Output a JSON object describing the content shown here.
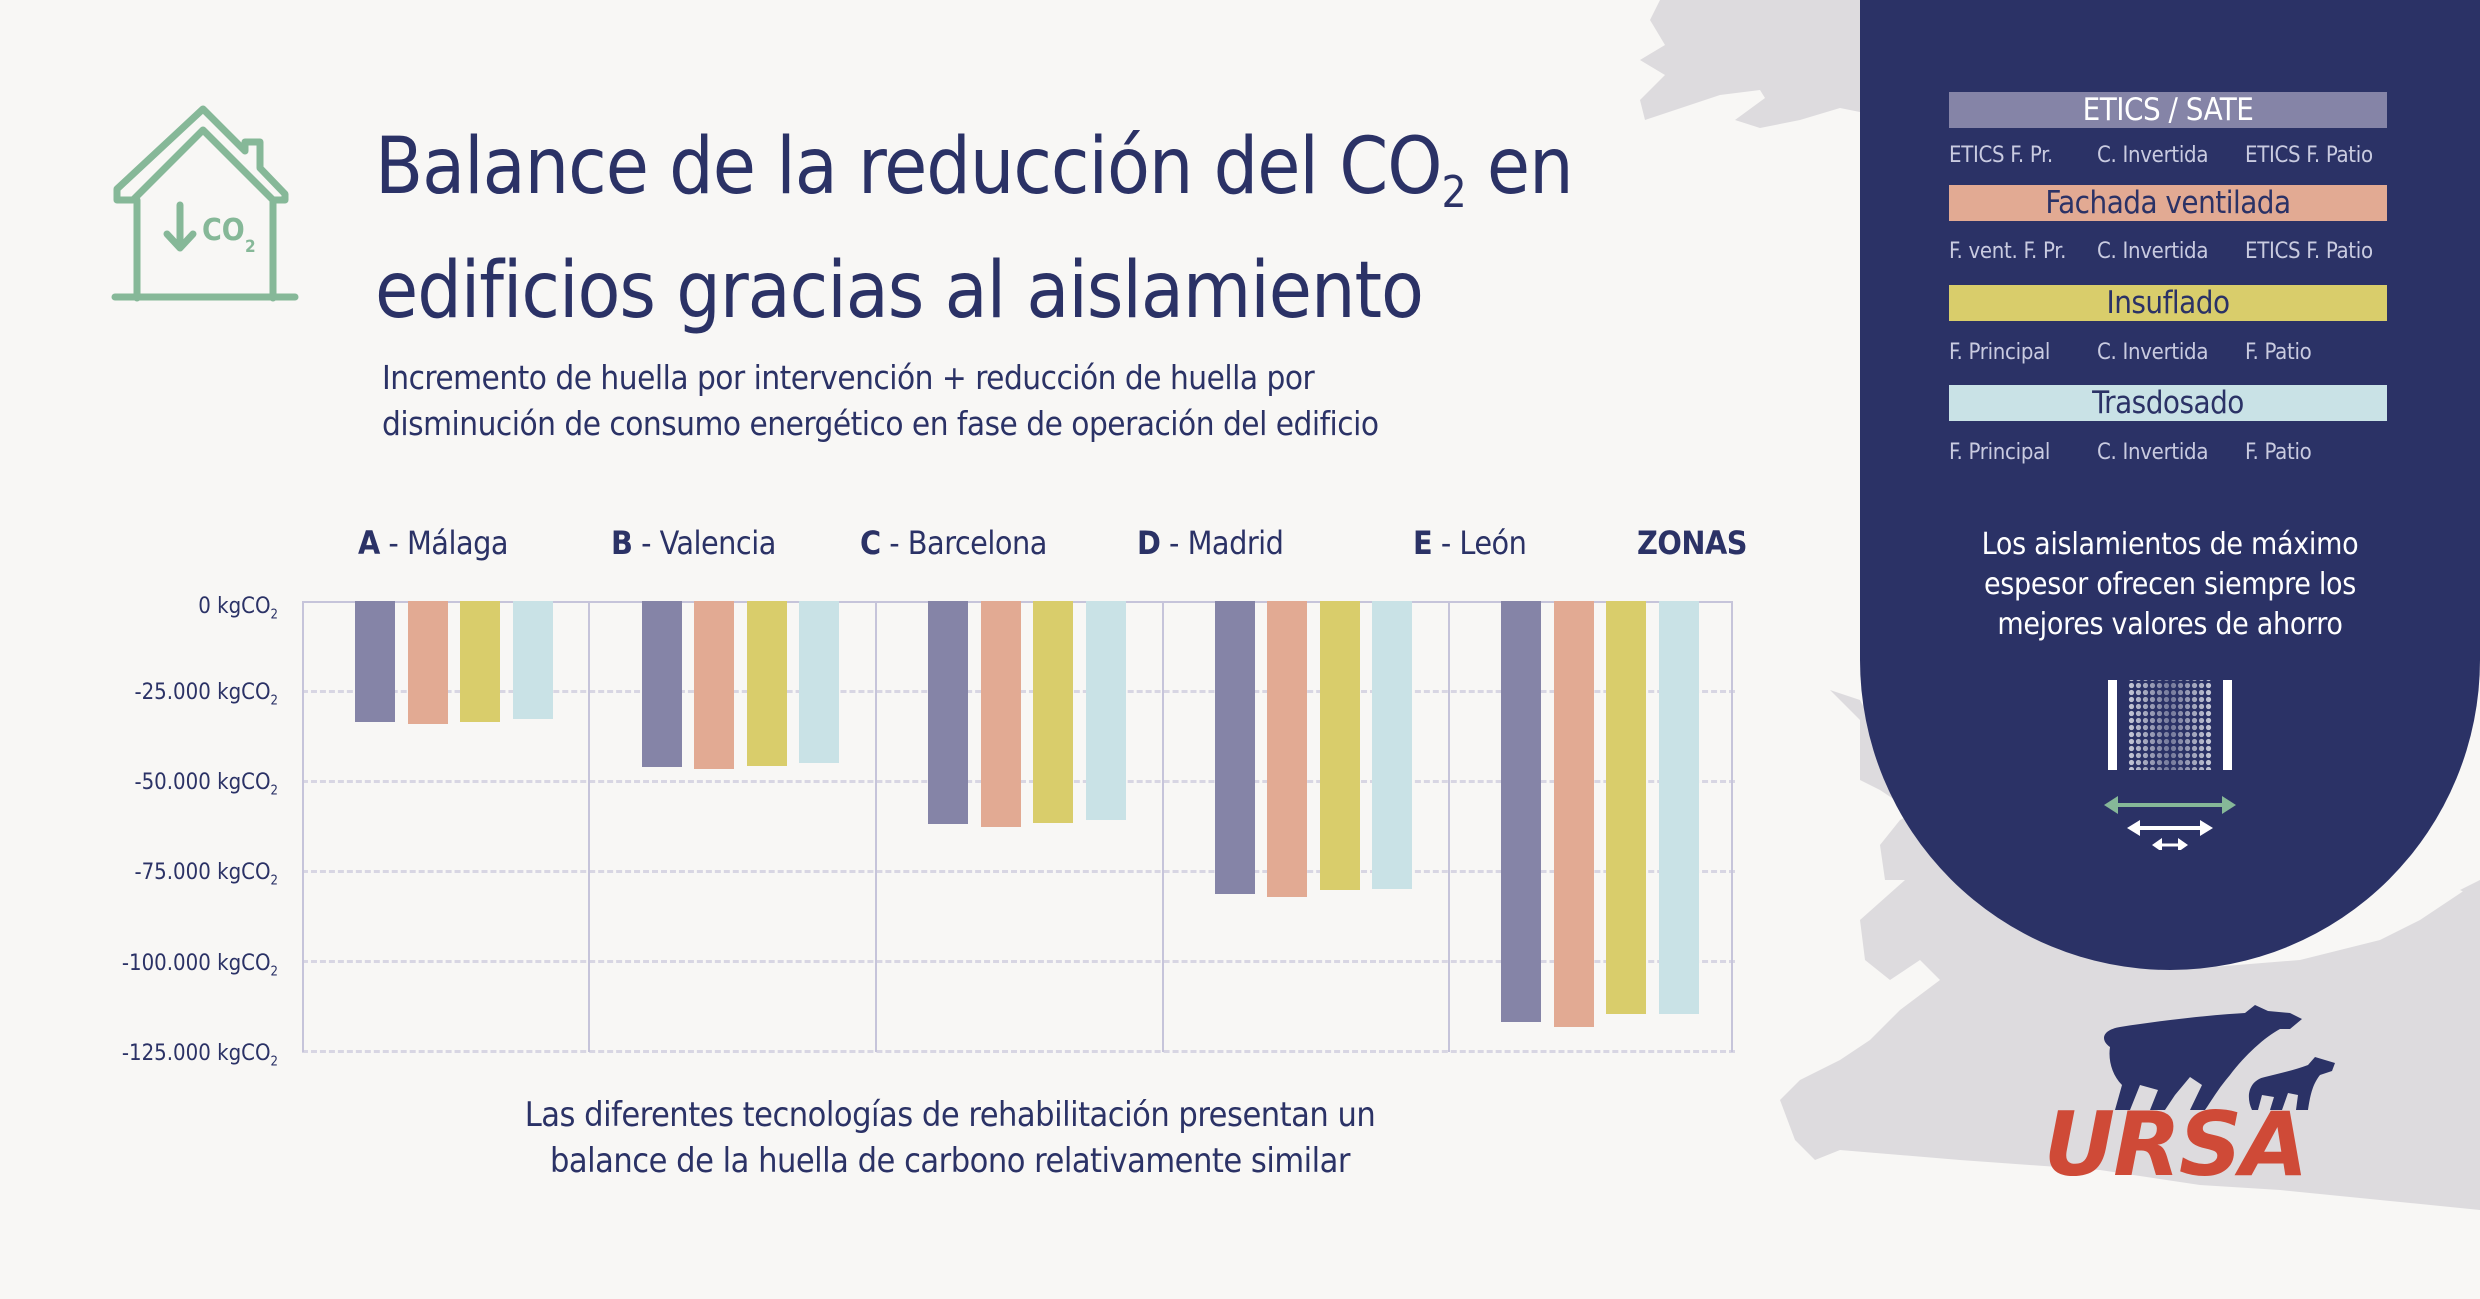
{
  "header": {
    "title_line1_pre": "Balance de la reducción del CO",
    "title_sub": "2",
    "title_line1_post": " en",
    "title_line2": "edificios gracias al aislamiento",
    "subtitle_line1": "Incremento de huella por intervención + reducción de huella por",
    "subtitle_line2": "disminución de consumo energético en fase de operación del edificio",
    "icon": "house-co2-down-icon"
  },
  "zones": [
    {
      "letter": "A",
      "name": " - Málaga"
    },
    {
      "letter": "B",
      "name": " - Valencia"
    },
    {
      "letter": "C",
      "name": " - Barcelona"
    },
    {
      "letter": "D",
      "name": " - Madrid"
    },
    {
      "letter": "E",
      "name": " - León"
    }
  ],
  "zones_header": "ZONAS",
  "yaxis": {
    "ticks": [
      "0 kgCO",
      "-25.000 kgCO",
      "-50.000 kgCO",
      "-75.000 kgCO",
      "-100.000 kgCO",
      "-125.000 kgCO"
    ],
    "unit_sub": "2"
  },
  "caption_line1": "Las diferentes tecnologías de rehabilitación presentan un",
  "caption_line2": "balance de la huella de carbono relativamente similar",
  "legend": {
    "groups": [
      {
        "label": "ETICS / SATE",
        "color": "#8584a7",
        "text_color": "#ffffff",
        "subs": [
          "ETICS F. Pr.",
          "C. Invertida",
          "ETICS F. Patio"
        ]
      },
      {
        "label": "Fachada ventilada",
        "color": "#e2aa93",
        "text_color": "#2b3266",
        "subs": [
          "F. vent. F. Pr.",
          "C. Invertida",
          "ETICS F. Patio"
        ]
      },
      {
        "label": "Insuflado",
        "color": "#d9cd6b",
        "text_color": "#2b3266",
        "subs": [
          "F. Principal",
          "C. Invertida",
          "F. Patio"
        ]
      },
      {
        "label": "Trasdosado",
        "color": "#c9e2e6",
        "text_color": "#2b3266",
        "subs": [
          "F. Principal",
          "C. Invertida",
          "F. Patio"
        ]
      }
    ]
  },
  "panel_text": {
    "line1": "Los aislamientos de máximo",
    "line2": "espesor ofrecen siempre los",
    "line3": "mejores valores de ahorro"
  },
  "panel_icon": "insulation-thickness-icon",
  "brand": {
    "name": "URSA",
    "logo_color": "#cf4a37",
    "bear_color": "#2b3266"
  },
  "colors": {
    "navy": "#2b3266",
    "background": "#f8f7f5",
    "map": "#dddbde",
    "accent_green": "#86b898"
  },
  "chart_data": {
    "type": "bar",
    "title": "Balance de la reducción del CO2 en edificios gracias al aislamiento",
    "subtitle": "Incremento de huella por intervención + reducción de huella por disminución de consumo energético en fase de operación del edificio",
    "categories": [
      "A - Málaga",
      "B - Valencia",
      "C - Barcelona",
      "D - Madrid",
      "E - León"
    ],
    "xlabel": "ZONAS",
    "ylabel": "kgCO2",
    "ylim": [
      -125000,
      0
    ],
    "yticks": [
      0,
      -25000,
      -50000,
      -75000,
      -100000,
      -125000
    ],
    "grid": true,
    "legend_position": "right",
    "series": [
      {
        "name": "ETICS / SATE",
        "color": "#8584a7",
        "values": [
          -33500,
          -46000,
          -61800,
          -81100,
          -116800
        ]
      },
      {
        "name": "Fachada ventilada",
        "color": "#e2aa93",
        "values": [
          -34100,
          -46600,
          -62600,
          -82100,
          -118100
        ]
      },
      {
        "name": "Insuflado",
        "color": "#d9cd6b",
        "values": [
          -33500,
          -45700,
          -61500,
          -80200,
          -114400
        ]
      },
      {
        "name": "Trasdosado",
        "color": "#c9e2e6",
        "values": [
          -32700,
          -44900,
          -60700,
          -79800,
          -114400
        ]
      }
    ]
  }
}
